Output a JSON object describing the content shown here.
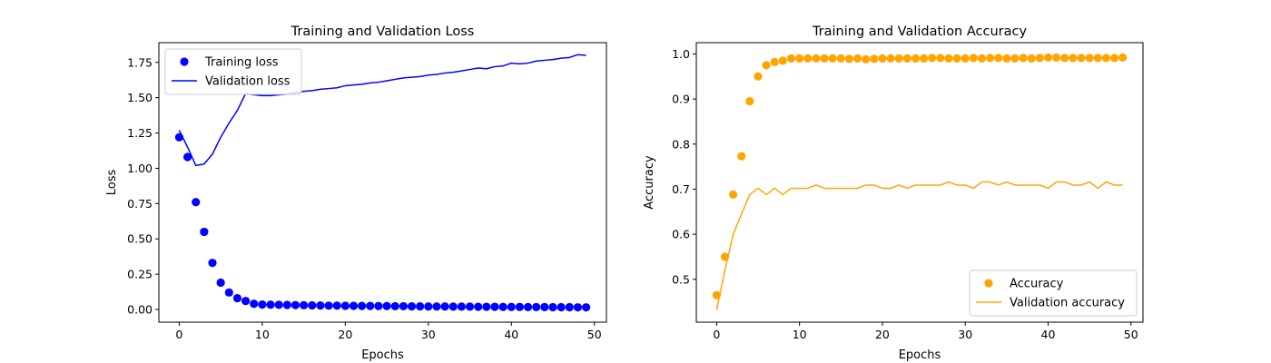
{
  "chart_data": [
    {
      "type": "line",
      "title": "Training and Validation Loss",
      "xlabel": "Epochs",
      "ylabel": "Loss",
      "xlim": [
        -2.45,
        51.45
      ],
      "ylim": [
        -0.09,
        1.89
      ],
      "xticks": [
        0,
        10,
        20,
        30,
        40,
        50
      ],
      "yticks": [
        0.0,
        0.25,
        0.5,
        0.75,
        1.0,
        1.25,
        1.5,
        1.75
      ],
      "ytick_decimals": 2,
      "grid": false,
      "legend_position": "upper left",
      "x": [
        0,
        1,
        2,
        3,
        4,
        5,
        6,
        7,
        8,
        9,
        10,
        11,
        12,
        13,
        14,
        15,
        16,
        17,
        18,
        19,
        20,
        21,
        22,
        23,
        24,
        25,
        26,
        27,
        28,
        29,
        30,
        31,
        32,
        33,
        34,
        35,
        36,
        37,
        38,
        39,
        40,
        41,
        42,
        43,
        44,
        45,
        46,
        47,
        48,
        49
      ],
      "series": [
        {
          "name": "Training loss",
          "style": "markers",
          "color": "#0000ff",
          "values": [
            1.22,
            1.08,
            0.76,
            0.55,
            0.33,
            0.19,
            0.12,
            0.08,
            0.06,
            0.04,
            0.035,
            0.034,
            0.033,
            0.032,
            0.031,
            0.03,
            0.029,
            0.028,
            0.027,
            0.027,
            0.026,
            0.026,
            0.025,
            0.025,
            0.024,
            0.024,
            0.023,
            0.023,
            0.022,
            0.022,
            0.021,
            0.021,
            0.021,
            0.02,
            0.02,
            0.02,
            0.019,
            0.019,
            0.019,
            0.018,
            0.018,
            0.018,
            0.017,
            0.017,
            0.017,
            0.016,
            0.016,
            0.016,
            0.015,
            0.015
          ]
        },
        {
          "name": "Validation loss",
          "style": "line",
          "color": "#0000ff",
          "values": [
            1.27,
            1.15,
            1.02,
            1.03,
            1.1,
            1.22,
            1.32,
            1.41,
            1.53,
            1.52,
            1.515,
            1.515,
            1.52,
            1.525,
            1.535,
            1.545,
            1.55,
            1.56,
            1.565,
            1.57,
            1.585,
            1.59,
            1.595,
            1.605,
            1.61,
            1.62,
            1.63,
            1.64,
            1.645,
            1.65,
            1.66,
            1.665,
            1.675,
            1.68,
            1.69,
            1.7,
            1.71,
            1.705,
            1.72,
            1.725,
            1.745,
            1.74,
            1.745,
            1.76,
            1.765,
            1.77,
            1.78,
            1.785,
            1.805,
            1.8
          ]
        }
      ]
    },
    {
      "type": "line",
      "title": "Training and Validation Accuracy",
      "xlabel": "Epochs",
      "ylabel": "Accuracy",
      "xlim": [
        -2.45,
        51.45
      ],
      "ylim": [
        0.405,
        1.025
      ],
      "xticks": [
        0,
        10,
        20,
        30,
        40,
        50
      ],
      "yticks": [
        0.5,
        0.6,
        0.7,
        0.8,
        0.9,
        1.0
      ],
      "ytick_decimals": 1,
      "grid": false,
      "legend_position": "lower right",
      "x": [
        0,
        1,
        2,
        3,
        4,
        5,
        6,
        7,
        8,
        9,
        10,
        11,
        12,
        13,
        14,
        15,
        16,
        17,
        18,
        19,
        20,
        21,
        22,
        23,
        24,
        25,
        26,
        27,
        28,
        29,
        30,
        31,
        32,
        33,
        34,
        35,
        36,
        37,
        38,
        39,
        40,
        41,
        42,
        43,
        44,
        45,
        46,
        47,
        48,
        49
      ],
      "series": [
        {
          "name": "Accuracy",
          "style": "markers",
          "color": "#ffa500",
          "values": [
            0.465,
            0.55,
            0.688,
            0.773,
            0.895,
            0.95,
            0.975,
            0.982,
            0.985,
            0.99,
            0.99,
            0.99,
            0.99,
            0.99,
            0.99,
            0.99,
            0.989,
            0.99,
            0.988,
            0.989,
            0.99,
            0.99,
            0.99,
            0.99,
            0.99,
            0.99,
            0.991,
            0.991,
            0.99,
            0.99,
            0.99,
            0.991,
            0.99,
            0.991,
            0.991,
            0.99,
            0.99,
            0.991,
            0.99,
            0.991,
            0.992,
            0.992,
            0.991,
            0.991,
            0.991,
            0.991,
            0.991,
            0.991,
            0.991,
            0.992
          ]
        },
        {
          "name": "Validation accuracy",
          "style": "line",
          "color": "#ffa500",
          "values": [
            0.432,
            0.52,
            0.6,
            0.645,
            0.688,
            0.702,
            0.688,
            0.702,
            0.688,
            0.702,
            0.702,
            0.702,
            0.709,
            0.702,
            0.702,
            0.702,
            0.702,
            0.702,
            0.709,
            0.709,
            0.702,
            0.702,
            0.709,
            0.702,
            0.709,
            0.709,
            0.709,
            0.709,
            0.716,
            0.709,
            0.709,
            0.702,
            0.716,
            0.716,
            0.709,
            0.716,
            0.709,
            0.709,
            0.709,
            0.709,
            0.702,
            0.716,
            0.716,
            0.709,
            0.709,
            0.716,
            0.702,
            0.716,
            0.709,
            0.709
          ]
        }
      ]
    }
  ]
}
